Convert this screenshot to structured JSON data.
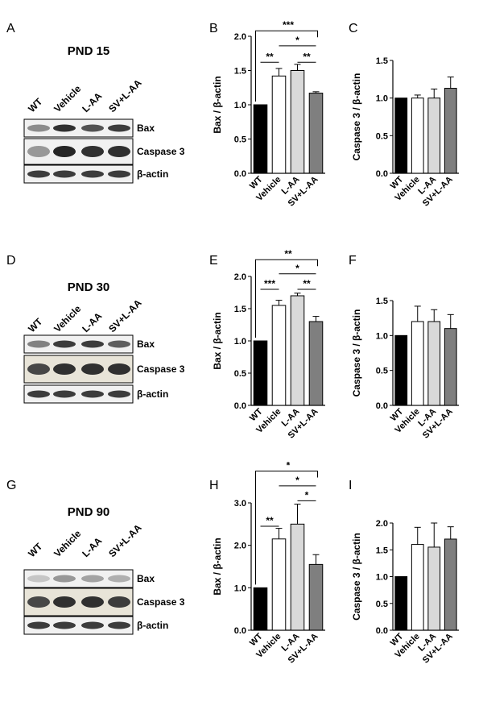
{
  "figure": {
    "rows": [
      {
        "blot": {
          "panel_letter": "A",
          "title": "PND 15",
          "lanes": [
            "WT",
            "Vehicle",
            "L-AA",
            "SV+L-AA"
          ],
          "bands": [
            "Bax",
            "Caspase 3",
            "β-actin"
          ],
          "band_intensity": [
            [
              0.5,
              0.9,
              0.75,
              0.85
            ],
            [
              0.45,
              0.95,
              0.9,
              0.9
            ],
            [
              0.85,
              0.85,
              0.85,
              0.85
            ]
          ]
        },
        "charts": [
          {
            "panel_letter": "B",
            "ylabel": "Bax / β-actin"
          },
          {
            "panel_letter": "C",
            "ylabel": "Caspase 3 / β-actin"
          }
        ]
      },
      {
        "blot": {
          "panel_letter": "D",
          "title": "PND 30",
          "lanes": [
            "WT",
            "Vehicle",
            "L-AA",
            "SV+L-AA"
          ],
          "bands": [
            "Bax",
            "Caspase 3",
            "β-actin"
          ],
          "band_intensity": [
            [
              0.55,
              0.85,
              0.85,
              0.7
            ],
            [
              0.8,
              0.9,
              0.9,
              0.9
            ],
            [
              0.85,
              0.85,
              0.85,
              0.85
            ]
          ]
        },
        "charts": [
          {
            "panel_letter": "E",
            "ylabel": "Bax / β-actin"
          },
          {
            "panel_letter": "F",
            "ylabel": "Caspase 3 / β-actin"
          }
        ]
      },
      {
        "blot": {
          "panel_letter": "G",
          "title": "PND 90",
          "lanes": [
            "WT",
            "Vehicle",
            "L-AA",
            "SV+L-AA"
          ],
          "bands": [
            "Bax",
            "Caspase 3",
            "β-actin"
          ],
          "band_intensity": [
            [
              0.25,
              0.45,
              0.4,
              0.35
            ],
            [
              0.8,
              0.9,
              0.9,
              0.85
            ],
            [
              0.85,
              0.85,
              0.85,
              0.85
            ]
          ]
        },
        "charts": [
          {
            "panel_letter": "H",
            "ylabel": "Bax / β-actin"
          },
          {
            "panel_letter": "I",
            "ylabel": "Caspase 3 / β-actin"
          }
        ]
      }
    ]
  },
  "chart_data": [
    {
      "panel": "B",
      "type": "bar",
      "categories": [
        "WT",
        "Vehicle",
        "L-AA",
        "SV+L-AA"
      ],
      "values": [
        1.0,
        1.42,
        1.5,
        1.17
      ],
      "errors": [
        0,
        0.11,
        0.09,
        0.02
      ],
      "colors": [
        "#000000",
        "#ffffff",
        "#d9d9d9",
        "#7f7f7f"
      ],
      "ylabel": "Bax / β-actin",
      "ylim": [
        0,
        2.0
      ],
      "yticks": [
        "0.0",
        "0.5",
        "1.0",
        "1.5",
        "2.0"
      ],
      "significance": [
        {
          "from": 0,
          "to": 1,
          "label": "**",
          "y": 1.62
        },
        {
          "from": 2,
          "to": 3,
          "label": "**",
          "y": 1.62
        },
        {
          "from": 1,
          "to": 3,
          "label": "*",
          "y": 1.86
        },
        {
          "from": 0,
          "to": 3,
          "label": "***",
          "y": 2.08
        }
      ]
    },
    {
      "panel": "C",
      "type": "bar",
      "categories": [
        "WT",
        "Vehicle",
        "L-AA",
        "SV+L-AA"
      ],
      "values": [
        1.0,
        1.0,
        1.0,
        1.13
      ],
      "errors": [
        0,
        0.04,
        0.12,
        0.15
      ],
      "colors": [
        "#000000",
        "#ffffff",
        "#d9d9d9",
        "#7f7f7f"
      ],
      "ylabel": "Caspase 3 / β-actin",
      "ylim": [
        0,
        1.5
      ],
      "yticks": [
        "0.0",
        "0.5",
        "1.0",
        "1.5"
      ],
      "significance": []
    },
    {
      "panel": "E",
      "type": "bar",
      "categories": [
        "WT",
        "Vehicle",
        "L-AA",
        "SV+L-AA"
      ],
      "values": [
        1.0,
        1.55,
        1.7,
        1.3
      ],
      "errors": [
        0,
        0.08,
        0.04,
        0.08
      ],
      "colors": [
        "#000000",
        "#ffffff",
        "#d9d9d9",
        "#7f7f7f"
      ],
      "ylabel": "Bax / β-actin",
      "ylim": [
        0,
        2.0
      ],
      "yticks": [
        "0.0",
        "0.5",
        "1.0",
        "1.5",
        "2.0"
      ],
      "significance": [
        {
          "from": 0,
          "to": 1,
          "label": "***",
          "y": 1.8
        },
        {
          "from": 2,
          "to": 3,
          "label": "**",
          "y": 1.8
        },
        {
          "from": 1,
          "to": 3,
          "label": "*",
          "y": 2.04
        },
        {
          "from": 0,
          "to": 3,
          "label": "**",
          "y": 2.26
        }
      ]
    },
    {
      "panel": "F",
      "type": "bar",
      "categories": [
        "WT",
        "Vehicle",
        "L-AA",
        "SV+L-AA"
      ],
      "values": [
        1.0,
        1.2,
        1.2,
        1.1
      ],
      "errors": [
        0,
        0.22,
        0.17,
        0.2
      ],
      "colors": [
        "#000000",
        "#ffffff",
        "#d9d9d9",
        "#7f7f7f"
      ],
      "ylabel": "Caspase 3 / β-actin",
      "ylim": [
        0,
        1.5
      ],
      "yticks": [
        "0.0",
        "0.5",
        "1.0",
        "1.5"
      ],
      "significance": []
    },
    {
      "panel": "H",
      "type": "bar",
      "categories": [
        "WT",
        "Vehicle",
        "L-AA",
        "SV+L-AA"
      ],
      "values": [
        1.0,
        2.15,
        2.5,
        1.55
      ],
      "errors": [
        0,
        0.25,
        0.47,
        0.23
      ],
      "colors": [
        "#000000",
        "#ffffff",
        "#d9d9d9",
        "#7f7f7f"
      ],
      "ylabel": "Bax / β-actin",
      "ylim": [
        0,
        3.0
      ],
      "yticks": [
        "0.0",
        "1.0",
        "2.0",
        "3.0"
      ],
      "significance": [
        {
          "from": 0,
          "to": 1,
          "label": "**",
          "y": 2.45
        },
        {
          "from": 2,
          "to": 3,
          "label": "*",
          "y": 3.05
        },
        {
          "from": 1,
          "to": 3,
          "label": "*",
          "y": 3.4
        },
        {
          "from": 0,
          "to": 3,
          "label": "*",
          "y": 3.75
        }
      ]
    },
    {
      "panel": "I",
      "type": "bar",
      "categories": [
        "WT",
        "Vehicle",
        "L-AA",
        "SV+L-AA"
      ],
      "values": [
        1.0,
        1.6,
        1.55,
        1.7
      ],
      "errors": [
        0,
        0.32,
        0.45,
        0.23
      ],
      "colors": [
        "#000000",
        "#ffffff",
        "#d9d9d9",
        "#7f7f7f"
      ],
      "ylabel": "Caspase 3 / β-actin",
      "ylim": [
        0,
        2.0
      ],
      "yticks": [
        "0.0",
        "0.5",
        "1.0",
        "1.5",
        "2.0"
      ],
      "significance": []
    }
  ]
}
